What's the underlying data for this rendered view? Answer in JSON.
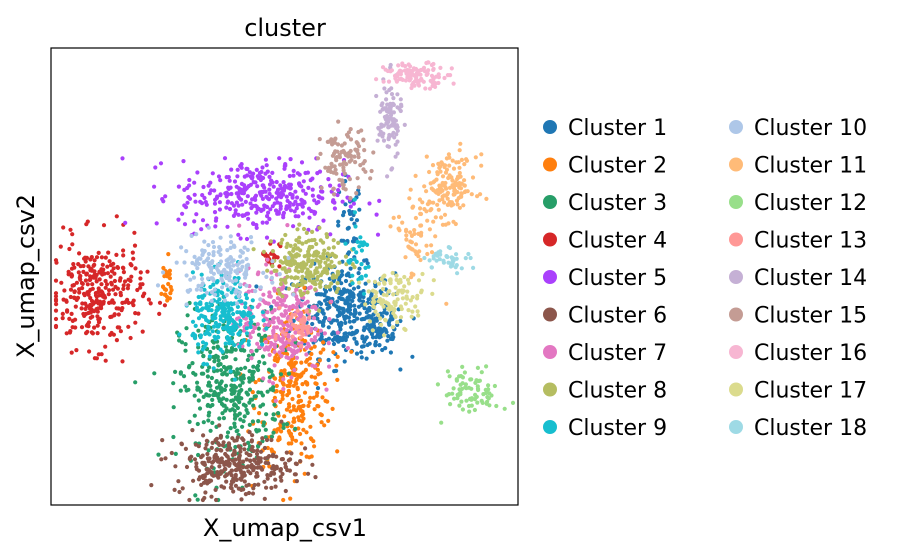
{
  "chart_data": {
    "type": "scatter",
    "title": "cluster",
    "xlabel": "X_umap_csv1",
    "ylabel": "X_umap_csv2",
    "xlim": [
      0,
      100
    ],
    "ylim": [
      0,
      100
    ],
    "xticks": [],
    "yticks": [],
    "grid": false,
    "legend": {
      "placement": "right",
      "columns": 2,
      "entries": [
        {
          "name": "Cluster 1",
          "color": "#1f77b4"
        },
        {
          "name": "Cluster 2",
          "color": "#ff7f0e"
        },
        {
          "name": "Cluster 3",
          "color": "#279e68"
        },
        {
          "name": "Cluster 4",
          "color": "#d62728"
        },
        {
          "name": "Cluster 5",
          "color": "#aa40fc"
        },
        {
          "name": "Cluster 6",
          "color": "#8c564b"
        },
        {
          "name": "Cluster 7",
          "color": "#e377c2"
        },
        {
          "name": "Cluster 8",
          "color": "#b5bd61"
        },
        {
          "name": "Cluster 9",
          "color": "#17becf"
        },
        {
          "name": "Cluster 10",
          "color": "#aec7e8"
        },
        {
          "name": "Cluster 11",
          "color": "#ffbb78"
        },
        {
          "name": "Cluster 12",
          "color": "#98df8a"
        },
        {
          "name": "Cluster 13",
          "color": "#ff9896"
        },
        {
          "name": "Cluster 14",
          "color": "#c5b0d5"
        },
        {
          "name": "Cluster 15",
          "color": "#c49c94"
        },
        {
          "name": "Cluster 16",
          "color": "#f7b6d2"
        },
        {
          "name": "Cluster 17",
          "color": "#dbdb8d"
        },
        {
          "name": "Cluster 18",
          "color": "#9edae5"
        }
      ]
    },
    "series": [
      {
        "name": "Cluster 1",
        "color": "#1f77b4",
        "regions": [
          {
            "cx": 63,
            "cy": 42,
            "sx": 5.5,
            "sy": 5,
            "n": 330
          },
          {
            "cx": 71,
            "cy": 38,
            "sx": 2.5,
            "sy": 3,
            "n": 60
          },
          {
            "cx": 64,
            "cy": 60,
            "sx": 1.5,
            "sy": 6,
            "n": 40
          }
        ]
      },
      {
        "name": "Cluster 2",
        "color": "#ff7f0e",
        "regions": [
          {
            "cx": 52,
            "cy": 26,
            "sx": 4,
            "sy": 9,
            "n": 300
          },
          {
            "cx": 24,
            "cy": 48,
            "sx": 0.9,
            "sy": 3,
            "n": 25
          }
        ]
      },
      {
        "name": "Cluster 3",
        "color": "#279e68",
        "regions": [
          {
            "cx": 38,
            "cy": 25,
            "sx": 5.5,
            "sy": 8.5,
            "n": 380
          }
        ]
      },
      {
        "name": "Cluster 4",
        "color": "#d62728",
        "regions": [
          {
            "cx": 9,
            "cy": 46,
            "sx": 5,
            "sy": 6,
            "n": 300
          },
          {
            "cx": 47,
            "cy": 55,
            "sx": 1,
            "sy": 1.5,
            "n": 25
          }
        ]
      },
      {
        "name": "Cluster 5",
        "color": "#aa40fc",
        "regions": [
          {
            "cx": 45,
            "cy": 68,
            "sx": 9,
            "sy": 4,
            "n": 350
          }
        ]
      },
      {
        "name": "Cluster 6",
        "color": "#8c564b",
        "regions": [
          {
            "cx": 39,
            "cy": 8,
            "sx": 6.5,
            "sy": 3.5,
            "n": 300
          }
        ]
      },
      {
        "name": "Cluster 7",
        "color": "#e377c2",
        "regions": [
          {
            "cx": 49,
            "cy": 40,
            "sx": 4.5,
            "sy": 6,
            "n": 280
          }
        ]
      },
      {
        "name": "Cluster 8",
        "color": "#b5bd61",
        "regions": [
          {
            "cx": 55,
            "cy": 53,
            "sx": 4,
            "sy": 3.5,
            "n": 230
          }
        ]
      },
      {
        "name": "Cluster 9",
        "color": "#17becf",
        "regions": [
          {
            "cx": 37,
            "cy": 41,
            "sx": 3.5,
            "sy": 4.5,
            "n": 240
          },
          {
            "cx": 66,
            "cy": 54,
            "sx": 1.5,
            "sy": 4,
            "n": 30
          }
        ]
      },
      {
        "name": "Cluster 10",
        "color": "#aec7e8",
        "regions": [
          {
            "cx": 36,
            "cy": 52,
            "sx": 5,
            "sy": 3.5,
            "n": 160
          }
        ]
      },
      {
        "name": "Cluster 11",
        "color": "#ffbb78",
        "regions": [
          {
            "cx": 86,
            "cy": 70,
            "sx": 3,
            "sy": 3.5,
            "n": 140
          },
          {
            "cx": 79,
            "cy": 59,
            "sx": 2.5,
            "sy": 5,
            "n": 60
          }
        ]
      },
      {
        "name": "Cluster 12",
        "color": "#98df8a",
        "regions": [
          {
            "cx": 91,
            "cy": 24,
            "sx": 3,
            "sy": 2.5,
            "n": 80
          }
        ]
      },
      {
        "name": "Cluster 13",
        "color": "#ff9896",
        "regions": [
          {
            "cx": 53,
            "cy": 39,
            "sx": 1.8,
            "sy": 2.5,
            "n": 40
          }
        ]
      },
      {
        "name": "Cluster 14",
        "color": "#c5b0d5",
        "regions": [
          {
            "cx": 73,
            "cy": 85,
            "sx": 1.3,
            "sy": 4.5,
            "n": 100
          }
        ]
      },
      {
        "name": "Cluster 15",
        "color": "#c49c94",
        "regions": [
          {
            "cx": 63,
            "cy": 76,
            "sx": 2.5,
            "sy": 3.5,
            "n": 100
          }
        ]
      },
      {
        "name": "Cluster 16",
        "color": "#f7b6d2",
        "regions": [
          {
            "cx": 79,
            "cy": 95,
            "sx": 3.5,
            "sy": 1.3,
            "n": 110
          }
        ]
      },
      {
        "name": "Cluster 17",
        "color": "#dbdb8d",
        "regions": [
          {
            "cx": 74,
            "cy": 45,
            "sx": 3.5,
            "sy": 3,
            "n": 110
          }
        ]
      },
      {
        "name": "Cluster 18",
        "color": "#9edae5",
        "regions": [
          {
            "cx": 86,
            "cy": 54,
            "sx": 2.5,
            "sy": 1.3,
            "n": 40
          }
        ]
      }
    ]
  }
}
